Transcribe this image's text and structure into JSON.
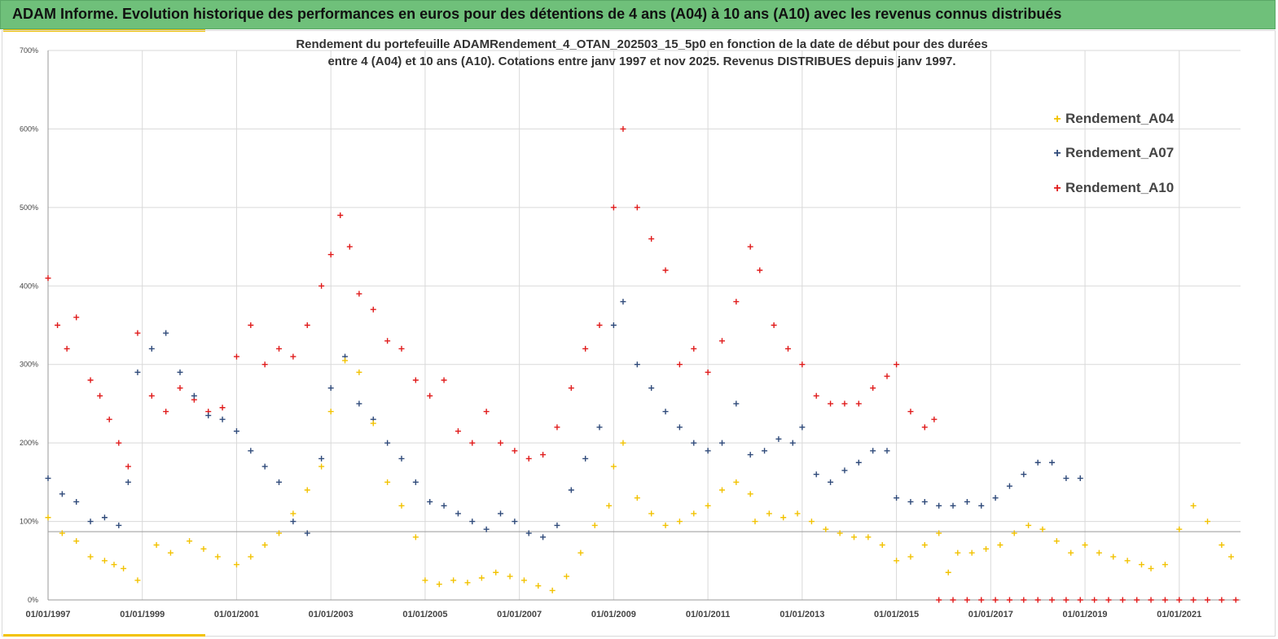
{
  "header": {
    "title": "ADAM Informe. Evolution historique des performances en euros pour des détentions de 4 ans (A04) à 10 ans (A10) avec les revenus connus distribués"
  },
  "colors": {
    "banner": "#6fc07a",
    "accent": "#f2c200",
    "a04": "#f2c200",
    "a07": "#2f4a7a",
    "a10": "#e01b1b",
    "grid": "#d9d9d9"
  },
  "chart_data": {
    "type": "scatter",
    "title_line1": "Rendement du portefeuille ADAMRendement_4_OTAN_202503_15_5p0  en fonction de la date de début pour des durées",
    "title_line2": "entre 4 (A04) et 10 ans (A10). Cotations entre janv 1997 et nov 2025. Revenus DISTRIBUES depuis janv 1997.",
    "xlabel": "",
    "ylabel": "",
    "xlim": [
      1997.0,
      2022.3
    ],
    "ylim": [
      0,
      700
    ],
    "x_ticks": [
      1997,
      1999,
      2001,
      2003,
      2005,
      2007,
      2009,
      2011,
      2013,
      2015,
      2017,
      2019,
      2021
    ],
    "x_tick_labels": [
      "01/01/1997",
      "01/01/1999",
      "01/01/2001",
      "01/01/2003",
      "01/01/2005",
      "01/01/2007",
      "01/01/2009",
      "01/01/2011",
      "01/01/2013",
      "01/01/2015",
      "01/01/2017",
      "01/01/2019",
      "01/01/2021"
    ],
    "y_ticks": [
      0,
      100,
      200,
      300,
      400,
      500,
      600,
      700
    ],
    "y_tick_labels": [
      "0%",
      "100%",
      "200%",
      "300%",
      "400%",
      "500%",
      "600%",
      "700%"
    ],
    "reference_line": 87,
    "legend": {
      "position": "top-right",
      "entries": [
        "Rendement_A04",
        "Rendement_A07",
        "Rendement_A10"
      ]
    },
    "series": [
      {
        "name": "Rendement_A04",
        "x": [
          1997.0,
          1997.3,
          1997.6,
          1997.9,
          1998.2,
          1998.4,
          1998.6,
          1998.9,
          1999.3,
          1999.6,
          2000.0,
          2000.3,
          2000.6,
          2001.0,
          2001.3,
          2001.6,
          2001.9,
          2002.2,
          2002.5,
          2002.8,
          2003.0,
          2003.3,
          2003.6,
          2003.9,
          2004.2,
          2004.5,
          2004.8,
          2005.0,
          2005.3,
          2005.6,
          2005.9,
          2006.2,
          2006.5,
          2006.8,
          2007.1,
          2007.4,
          2007.7,
          2008.0,
          2008.3,
          2008.6,
          2008.9,
          2009.0,
          2009.2,
          2009.5,
          2009.8,
          2010.1,
          2010.4,
          2010.7,
          2011.0,
          2011.3,
          2011.6,
          2011.9,
          2012.0,
          2012.3,
          2012.6,
          2012.9,
          2013.2,
          2013.5,
          2013.8,
          2014.1,
          2014.4,
          2014.7,
          2015.0,
          2015.3,
          2015.6,
          2015.9,
          2016.1,
          2016.3,
          2016.6,
          2016.9,
          2017.2,
          2017.5,
          2017.8,
          2018.1,
          2018.4,
          2018.7,
          2019.0,
          2019.3,
          2019.6,
          2019.9,
          2020.2,
          2020.4,
          2020.7,
          2021.0,
          2021.3,
          2021.6,
          2021.9,
          2022.1
        ],
        "y": [
          105,
          85,
          75,
          55,
          50,
          45,
          40,
          25,
          70,
          60,
          75,
          65,
          55,
          45,
          55,
          70,
          85,
          110,
          140,
          170,
          240,
          305,
          290,
          225,
          150,
          120,
          80,
          25,
          20,
          25,
          22,
          28,
          35,
          30,
          25,
          18,
          12,
          30,
          60,
          95,
          120,
          170,
          200,
          130,
          110,
          95,
          100,
          110,
          120,
          140,
          150,
          135,
          100,
          110,
          105,
          110,
          100,
          90,
          85,
          80,
          80,
          70,
          50,
          55,
          70,
          85,
          35,
          60,
          60,
          65,
          70,
          85,
          95,
          90,
          75,
          60,
          70,
          60,
          55,
          50,
          45,
          40,
          45,
          90,
          120,
          100,
          70,
          55
        ]
      },
      {
        "name": "Rendement_A07",
        "x": [
          1997.0,
          1997.3,
          1997.6,
          1997.9,
          1998.2,
          1998.5,
          1998.7,
          1998.9,
          1999.2,
          1999.5,
          1999.8,
          2000.1,
          2000.4,
          2000.7,
          2001.0,
          2001.3,
          2001.6,
          2001.9,
          2002.2,
          2002.5,
          2002.8,
          2003.0,
          2003.3,
          2003.6,
          2003.9,
          2004.2,
          2004.5,
          2004.8,
          2005.1,
          2005.4,
          2005.7,
          2006.0,
          2006.3,
          2006.6,
          2006.9,
          2007.2,
          2007.5,
          2007.8,
          2008.1,
          2008.4,
          2008.7,
          2009.0,
          2009.2,
          2009.5,
          2009.8,
          2010.1,
          2010.4,
          2010.7,
          2011.0,
          2011.3,
          2011.6,
          2011.9,
          2012.2,
          2012.5,
          2012.8,
          2013.0,
          2013.3,
          2013.6,
          2013.9,
          2014.2,
          2014.5,
          2014.8,
          2015.0,
          2015.3,
          2015.6,
          2015.9,
          2016.2,
          2016.5,
          2016.8,
          2017.1,
          2017.4,
          2017.7,
          2018.0,
          2018.3,
          2018.6,
          2018.9
        ],
        "y": [
          155,
          135,
          125,
          100,
          105,
          95,
          150,
          290,
          320,
          340,
          290,
          260,
          235,
          230,
          215,
          190,
          170,
          150,
          100,
          85,
          180,
          270,
          310,
          250,
          230,
          200,
          180,
          150,
          125,
          120,
          110,
          100,
          90,
          110,
          100,
          85,
          80,
          95,
          140,
          180,
          220,
          350,
          380,
          300,
          270,
          240,
          220,
          200,
          190,
          200,
          250,
          185,
          190,
          205,
          200,
          220,
          160,
          150,
          165,
          175,
          190,
          190,
          130,
          125,
          125,
          120,
          120,
          125,
          120,
          130,
          145,
          160,
          175,
          175,
          155,
          155
        ]
      },
      {
        "name": "Rendement_A10",
        "x": [
          1997.0,
          1997.2,
          1997.4,
          1997.6,
          1997.9,
          1998.1,
          1998.3,
          1998.5,
          1998.7,
          1998.9,
          1999.2,
          1999.5,
          1999.8,
          2000.1,
          2000.4,
          2000.7,
          2001.0,
          2001.3,
          2001.6,
          2001.9,
          2002.2,
          2002.5,
          2002.8,
          2003.0,
          2003.2,
          2003.4,
          2003.6,
          2003.9,
          2004.2,
          2004.5,
          2004.8,
          2005.1,
          2005.4,
          2005.7,
          2006.0,
          2006.3,
          2006.6,
          2006.9,
          2007.2,
          2007.5,
          2007.8,
          2008.1,
          2008.4,
          2008.7,
          2009.0,
          2009.2,
          2009.5,
          2009.8,
          2010.1,
          2010.4,
          2010.7,
          2011.0,
          2011.3,
          2011.6,
          2011.9,
          2012.1,
          2012.4,
          2012.7,
          2013.0,
          2013.3,
          2013.6,
          2013.9,
          2014.2,
          2014.5,
          2014.8,
          2015.0,
          2015.3,
          2015.6,
          2015.8
        ],
        "y": [
          410,
          350,
          320,
          360,
          280,
          260,
          230,
          200,
          170,
          340,
          260,
          240,
          270,
          255,
          240,
          245,
          310,
          350,
          300,
          320,
          310,
          350,
          400,
          440,
          490,
          450,
          390,
          370,
          330,
          320,
          280,
          260,
          280,
          215,
          200,
          240,
          200,
          190,
          180,
          185,
          220,
          270,
          320,
          350,
          500,
          600,
          500,
          460,
          420,
          300,
          320,
          290,
          330,
          380,
          450,
          420,
          350,
          320,
          300,
          260,
          250,
          250,
          250,
          270,
          285,
          300,
          240,
          220,
          230
        ]
      },
      {
        "name": "Rendement_A10",
        "x": [
          2015.9,
          2016.2,
          2016.5,
          2016.8,
          2017.1,
          2017.4,
          2017.7,
          2018.0,
          2018.3,
          2018.6,
          2018.9,
          2019.2,
          2019.5,
          2019.8,
          2020.1,
          2020.4,
          2020.7,
          2021.0,
          2021.3,
          2021.6,
          2021.9,
          2022.2
        ],
        "y": [
          0,
          0,
          0,
          0,
          0,
          0,
          0,
          0,
          0,
          0,
          0,
          0,
          0,
          0,
          0,
          0,
          0,
          0,
          0,
          0,
          0,
          0
        ]
      }
    ]
  }
}
